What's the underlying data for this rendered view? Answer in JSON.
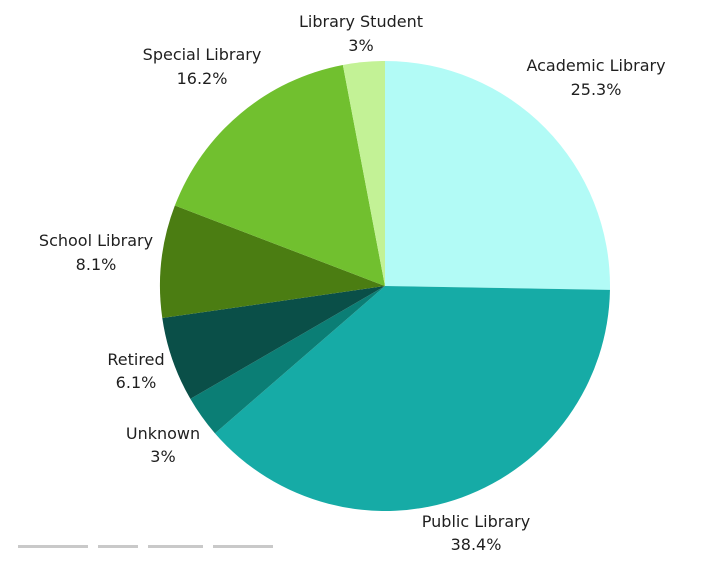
{
  "chart_data": {
    "type": "pie",
    "start_angle_deg": 0,
    "direction": "clockwise",
    "slices": [
      {
        "label": "Academic Library",
        "pct_text": "25.3%",
        "value": 25.3,
        "color": "#b2fbf6"
      },
      {
        "label": "Public Library",
        "pct_text": "38.4%",
        "value": 38.4,
        "color": "#16aba6"
      },
      {
        "label": "Unknown",
        "pct_text": "3%",
        "value": 3.0,
        "color": "#0b7e75"
      },
      {
        "label": "Retired",
        "pct_text": "6.1%",
        "value": 6.1,
        "color": "#0a4f48"
      },
      {
        "label": "School Library",
        "pct_text": "8.1%",
        "value": 8.1,
        "color": "#4b7d12"
      },
      {
        "label": "Special Library",
        "pct_text": "16.2%",
        "value": 16.2,
        "color": "#71c02f"
      },
      {
        "label": "Library Student",
        "pct_text": "3%",
        "value": 3.0,
        "color": "#c3f296"
      }
    ]
  }
}
